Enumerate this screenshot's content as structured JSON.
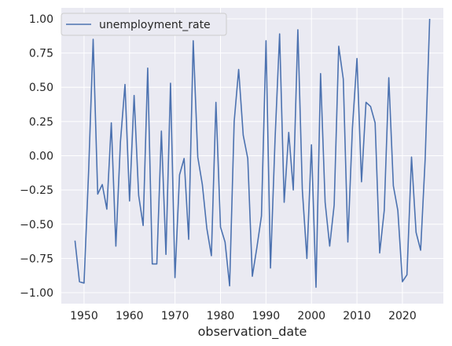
{
  "chart_data": {
    "type": "line",
    "xlabel": "observation_date",
    "ylabel": "",
    "xlim": [
      1945,
      2029
    ],
    "ylim": [
      -1.08,
      1.08
    ],
    "x_ticks": [
      1950,
      1960,
      1970,
      1980,
      1990,
      2000,
      2010,
      2020
    ],
    "y_ticks": [
      -1.0,
      -0.75,
      -0.5,
      -0.25,
      0.0,
      0.25,
      0.5,
      0.75,
      1.0
    ],
    "y_tick_labels": [
      "−1.00",
      "−0.75",
      "−0.50",
      "−0.25",
      "0.00",
      "0.25",
      "0.50",
      "0.75",
      "1.00"
    ],
    "grid": true,
    "legend_position": "top-left",
    "style": {
      "background": "#eaeaf2",
      "grid_color": "#ffffff",
      "line_color": "#4c72b0"
    },
    "series": [
      {
        "name": "unemployment_rate",
        "x": [
          1948,
          1949,
          1950,
          1951,
          1952,
          1953,
          1954,
          1955,
          1956,
          1957,
          1958,
          1959,
          1960,
          1961,
          1962,
          1963,
          1964,
          1965,
          1966,
          1967,
          1968,
          1969,
          1970,
          1971,
          1972,
          1973,
          1974,
          1975,
          1976,
          1977,
          1978,
          1979,
          1980,
          1981,
          1982,
          1983,
          1984,
          1985,
          1986,
          1987,
          1988,
          1989,
          1990,
          1991,
          1992,
          1993,
          1994,
          1995,
          1996,
          1997,
          1998,
          1999,
          2000,
          2001,
          2002,
          2003,
          2004,
          2005,
          2006,
          2007,
          2008,
          2009,
          2010,
          2011,
          2012,
          2013,
          2014,
          2015,
          2016,
          2017,
          2018,
          2019,
          2020,
          2021,
          2022,
          2023,
          2024,
          2025,
          2026
        ],
        "values": [
          -0.62,
          -0.92,
          -0.93,
          -0.12,
          0.85,
          -0.28,
          -0.21,
          -0.39,
          0.24,
          -0.66,
          0.1,
          0.52,
          -0.33,
          0.44,
          -0.29,
          -0.51,
          0.64,
          -0.79,
          -0.79,
          0.18,
          -0.72,
          0.53,
          -0.89,
          -0.14,
          -0.02,
          -0.61,
          0.84,
          -0.01,
          -0.21,
          -0.53,
          -0.73,
          0.39,
          -0.52,
          -0.63,
          -0.95,
          0.25,
          0.63,
          0.15,
          -0.02,
          -0.88,
          -0.67,
          -0.44,
          0.84,
          -0.82,
          0.12,
          0.89,
          -0.34,
          0.17,
          -0.25,
          0.92,
          -0.25,
          -0.75,
          0.08,
          -0.96,
          0.6,
          -0.34,
          -0.66,
          -0.36,
          0.8,
          0.56,
          -0.63,
          0.2,
          0.71,
          -0.19,
          0.39,
          0.36,
          0.24,
          -0.71,
          -0.4,
          0.57,
          -0.22,
          -0.4,
          -0.92,
          -0.87,
          -0.01,
          -0.56,
          -0.69,
          -0.02,
          1.0
        ]
      }
    ]
  }
}
